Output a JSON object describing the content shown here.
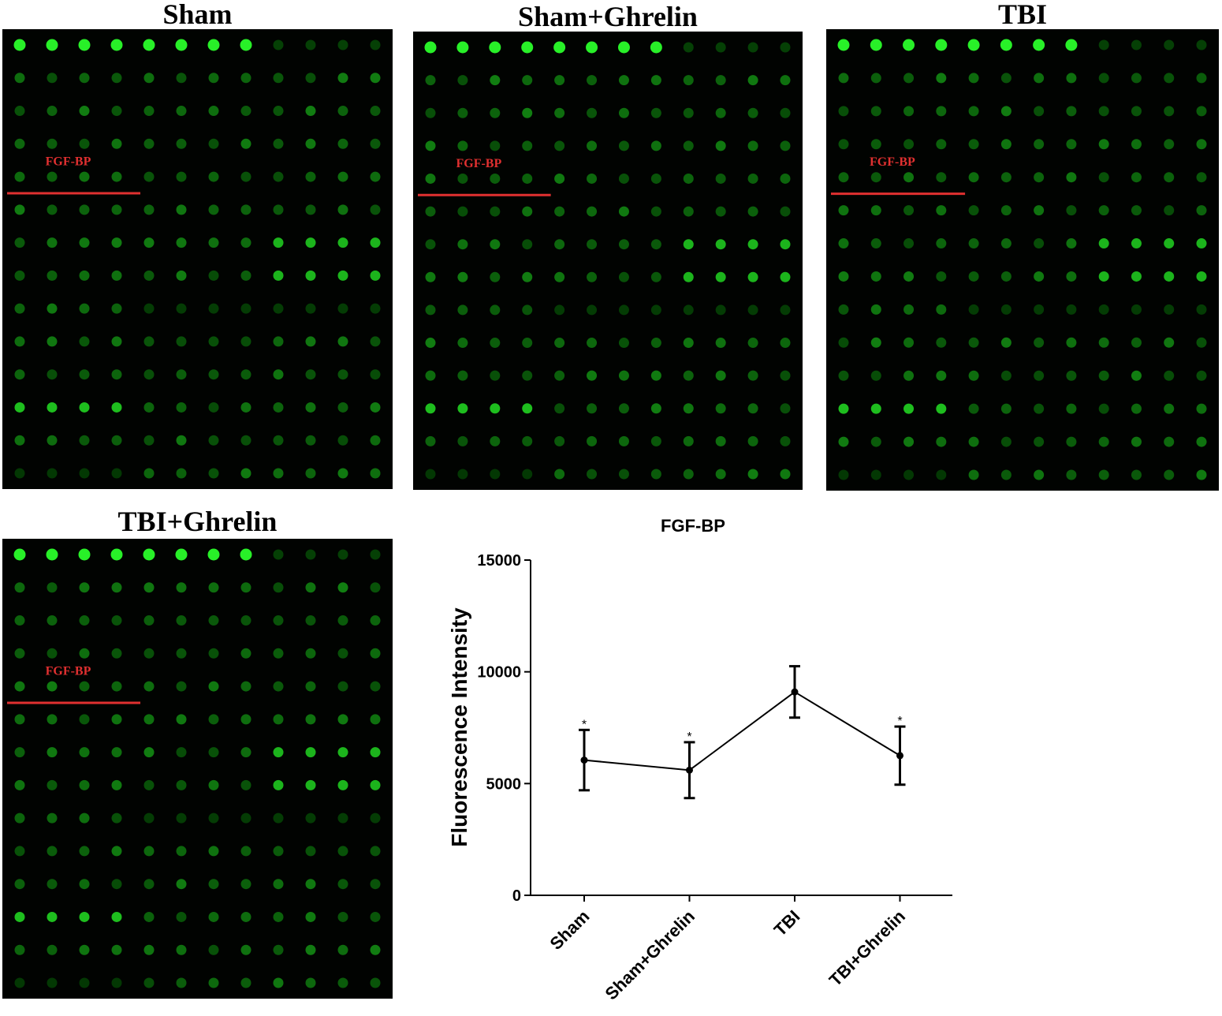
{
  "panels": [
    {
      "title": "Sham",
      "marker_label": "FGF-BP",
      "bright_block_rows": 5
    },
    {
      "title": "Sham+Ghrelin",
      "marker_label": "FGF-BP",
      "bright_block_rows": 5
    },
    {
      "title": "TBI",
      "marker_label": "FGF-BP",
      "bright_block_rows": 5
    },
    {
      "title": "TBI+Ghrelin",
      "marker_label": "FGF-BP",
      "bright_block_rows": 5
    }
  ],
  "array_grid": {
    "columns": 12,
    "rows": 14
  },
  "colors": {
    "array_background": "#010301",
    "spot_green": "#22e022",
    "marker_red": "#e03030",
    "chart_line": "#000000"
  },
  "chart_data": {
    "type": "line",
    "title": "FGF-BP",
    "xlabel": "",
    "ylabel": "Fluorescence Intensity",
    "categories": [
      "Sham",
      "Sham+Ghrelin",
      "TBI",
      "TBI+Ghrelin"
    ],
    "values": [
      6050,
      5600,
      9100,
      6250
    ],
    "error": [
      1350,
      1250,
      1150,
      1300
    ],
    "significance": [
      "*",
      "*",
      "",
      "*"
    ],
    "ylim": [
      0,
      15000
    ],
    "yticks": [
      0,
      5000,
      10000,
      15000
    ],
    "grid": false
  }
}
